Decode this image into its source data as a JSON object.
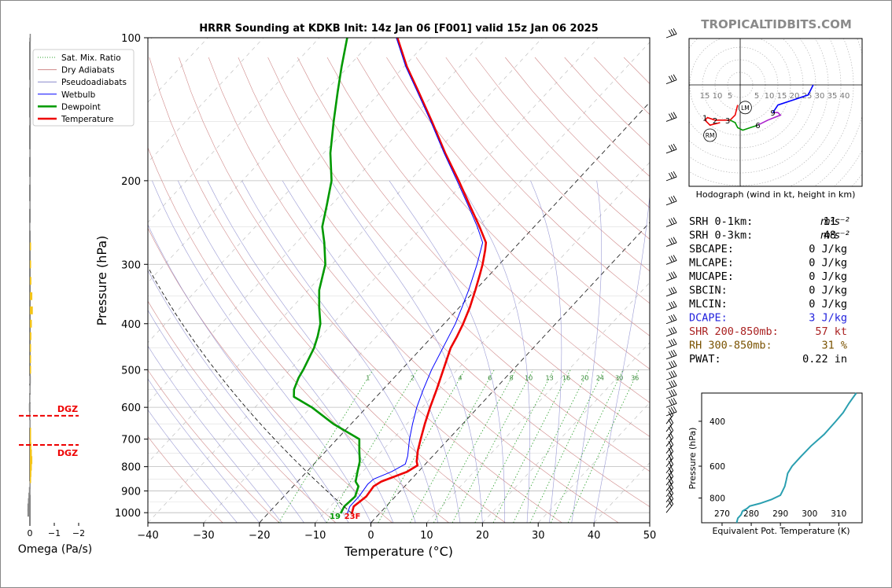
{
  "header": {
    "title": "HRRR Sounding at KDKB Init: 14z Jan 06 [F001] valid 15z Jan 06 2025",
    "brand": "TROPICALTIDBITS.COM"
  },
  "chart_data": [
    {
      "type": "line",
      "name": "skewt",
      "xlabel": "Temperature (°C)",
      "ylabel": "Pressure (hPa)",
      "xlim": [
        -40,
        50
      ],
      "ylim": [
        1050,
        100
      ],
      "log_y": true,
      "grid": true,
      "x_ticks": [
        "−40",
        "−30",
        "−20",
        "−10",
        "0",
        "10",
        "20",
        "30",
        "40",
        "50"
      ],
      "x_tick_values": [
        -40,
        -30,
        -20,
        -10,
        0,
        10,
        20,
        30,
        40,
        50
      ],
      "y_ticks": [
        "100",
        "200",
        "300",
        "400",
        "500",
        "600",
        "700",
        "800",
        "900",
        "1000"
      ],
      "y_tick_values": [
        100,
        200,
        300,
        400,
        500,
        600,
        700,
        800,
        900,
        1000
      ],
      "legend": {
        "placement": "top-left",
        "entries": [
          {
            "label": "Sat. Mix. Ratio",
            "color": "#2ca02c",
            "style": "dotted"
          },
          {
            "label": "Dry Adiabats",
            "color": "#d08a8a",
            "style": "solid"
          },
          {
            "label": "Pseudoadiabats",
            "color": "#8888cc",
            "style": "solid"
          },
          {
            "label": "Wetbulb",
            "color": "#0000ff",
            "style": "solid"
          },
          {
            "label": "Dewpoint",
            "color": "#009900",
            "style": "solid"
          },
          {
            "label": "Temperature",
            "color": "#ee0000",
            "style": "solid"
          }
        ]
      },
      "mixing_ratio_labels": [
        "1",
        "2",
        "4",
        "6",
        "8",
        "10",
        "13",
        "16",
        "20",
        "24",
        "30",
        "36"
      ],
      "mixing_ratio_values": [
        1,
        2,
        4,
        6,
        8,
        10,
        13,
        16,
        20,
        24,
        30,
        36
      ],
      "surface_temp_label": "23F",
      "surface_dewp_label": "19",
      "series": [
        {
          "name": "Temperature",
          "color": "#ee0000",
          "points": [
            [
              1003,
              -5.0
            ],
            [
              970,
              -5.8
            ],
            [
              925,
              -5.2
            ],
            [
              880,
              -5.6
            ],
            [
              860,
              -5.0
            ],
            [
              820,
              -2.0
            ],
            [
              795,
              -1.2
            ],
            [
              780,
              -2.0
            ],
            [
              740,
              -3.6
            ],
            [
              700,
              -5.0
            ],
            [
              650,
              -6.8
            ],
            [
              600,
              -8.6
            ],
            [
              550,
              -10.4
            ],
            [
              500,
              -12.5
            ],
            [
              450,
              -14.8
            ],
            [
              425,
              -15.6
            ],
            [
              400,
              -16.6
            ],
            [
              370,
              -18.1
            ],
            [
              340,
              -20.0
            ],
            [
              315,
              -21.8
            ],
            [
              300,
              -23.0
            ],
            [
              280,
              -24.9
            ],
            [
              270,
              -26.0
            ],
            [
              250,
              -29.8
            ],
            [
              225,
              -35.2
            ],
            [
              200,
              -41.2
            ],
            [
              175,
              -48.2
            ],
            [
              150,
              -55.9
            ],
            [
              130,
              -63.2
            ],
            [
              115,
              -69.5
            ],
            [
              100,
              -76.0
            ]
          ]
        },
        {
          "name": "Dewpoint",
          "color": "#009900",
          "points": [
            [
              1003,
              -7.0
            ],
            [
              970,
              -7.5
            ],
            [
              925,
              -7.2
            ],
            [
              880,
              -8.3
            ],
            [
              860,
              -9.6
            ],
            [
              820,
              -10.9
            ],
            [
              780,
              -12.2
            ],
            [
              740,
              -14.1
            ],
            [
              700,
              -16.0
            ],
            [
              650,
              -23.2
            ],
            [
              600,
              -29.8
            ],
            [
              570,
              -34.8
            ],
            [
              550,
              -36.0
            ],
            [
              520,
              -37.1
            ],
            [
              500,
              -37.6
            ],
            [
              450,
              -39.3
            ],
            [
              425,
              -40.6
            ],
            [
              400,
              -42.2
            ],
            [
              370,
              -45.1
            ],
            [
              340,
              -48.0
            ],
            [
              300,
              -51.2
            ],
            [
              270,
              -55.0
            ],
            [
              250,
              -58.0
            ],
            [
              225,
              -60.8
            ],
            [
              200,
              -64.0
            ],
            [
              175,
              -68.8
            ],
            [
              150,
              -73.5
            ],
            [
              130,
              -77.7
            ],
            [
              115,
              -81.2
            ],
            [
              100,
              -85.0
            ]
          ]
        },
        {
          "name": "Wetbulb",
          "color": "#0000ff",
          "points": [
            [
              1003,
              -5.8
            ],
            [
              970,
              -6.5
            ],
            [
              925,
              -6.5
            ],
            [
              870,
              -7.0
            ],
            [
              850,
              -6.8
            ],
            [
              820,
              -4.8
            ],
            [
              790,
              -3.6
            ],
            [
              760,
              -4.5
            ],
            [
              700,
              -7.0
            ],
            [
              650,
              -9.0
            ],
            [
              600,
              -11.0
            ],
            [
              550,
              -12.8
            ],
            [
              500,
              -14.6
            ],
            [
              450,
              -16.2
            ],
            [
              400,
              -18.0
            ],
            [
              370,
              -19.5
            ],
            [
              340,
              -21.2
            ],
            [
              300,
              -24.0
            ],
            [
              270,
              -26.6
            ],
            [
              250,
              -30.2
            ],
            [
              225,
              -35.5
            ],
            [
              200,
              -41.5
            ],
            [
              175,
              -48.4
            ],
            [
              150,
              -56.1
            ],
            [
              130,
              -63.4
            ],
            [
              115,
              -69.7
            ],
            [
              100,
              -76.2
            ]
          ]
        }
      ]
    },
    {
      "type": "bar",
      "name": "omega",
      "xlabel": "Omega (Pa/s)",
      "x_ticks": [
        "0",
        "−1",
        "−2"
      ],
      "x_tick_values": [
        0,
        -1,
        -2
      ],
      "dgz_label": "DGZ",
      "dgz_pressures": [
        625,
        720
      ],
      "pressure": [
        1000,
        975,
        950,
        925,
        900,
        875,
        850,
        825,
        800,
        775,
        750,
        725,
        700,
        675,
        650,
        625,
        600,
        575,
        550,
        525,
        500,
        475,
        450,
        425,
        400,
        375,
        350,
        325,
        300,
        275,
        250,
        225,
        200,
        175,
        150,
        125,
        100
      ],
      "values": [
        0.1,
        0.1,
        0.08,
        0.06,
        0.04,
        0.02,
        -0.02,
        -0.06,
        -0.08,
        -0.1,
        -0.08,
        -0.06,
        -0.04,
        -0.02,
        0.02,
        0.03,
        0.04,
        0.03,
        0.02,
        0.01,
        -0.01,
        -0.02,
        -0.04,
        -0.06,
        -0.08,
        -0.12,
        -0.1,
        -0.06,
        -0.04,
        -0.02,
        0.03,
        0.02,
        0.02,
        0.02,
        0.01,
        0.01,
        0.01
      ]
    },
    {
      "type": "line",
      "name": "hodograph",
      "caption": "Hodograph (wind in kt, height in km)",
      "ring_labels_left": [
        "15",
        "10",
        "5"
      ],
      "ring_labels_right": [
        "5",
        "10",
        "15",
        "20",
        "25",
        "30",
        "35",
        "40"
      ],
      "markers": [
        {
          "label": "LM",
          "u": 2,
          "v": -9
        },
        {
          "label": "RM",
          "u": -12,
          "v": -20
        }
      ],
      "height_labels": [
        {
          "label": "1",
          "u": -14,
          "v": -13
        },
        {
          "label": "2",
          "u": -10,
          "v": -14
        },
        {
          "label": "3",
          "u": -5,
          "v": -14
        },
        {
          "label": "6",
          "u": 7,
          "v": -16
        },
        {
          "label": "9",
          "u": 13,
          "v": -11
        }
      ],
      "segments": [
        {
          "color": "#ee0000",
          "points": [
            [
              -1,
              -8
            ],
            [
              -2,
              -12
            ],
            [
              -4,
              -14
            ],
            [
              -7,
              -14
            ],
            [
              -10,
              -14
            ],
            [
              -13,
              -13
            ],
            [
              -14,
              -14
            ],
            [
              -12,
              -16
            ],
            [
              -8,
              -15
            ]
          ]
        },
        {
          "color": "#009900",
          "points": [
            [
              -4,
              -14
            ],
            [
              -2,
              -15
            ],
            [
              -1,
              -17
            ],
            [
              1,
              -18
            ],
            [
              4,
              -17
            ],
            [
              7,
              -16
            ]
          ]
        },
        {
          "color": "#aa22cc",
          "points": [
            [
              7,
              -16
            ],
            [
              11,
              -14
            ],
            [
              16,
              -12
            ],
            [
              15,
              -11
            ],
            [
              13,
              -11
            ]
          ]
        },
        {
          "color": "#0000ff",
          "points": [
            [
              13,
              -11
            ],
            [
              15,
              -8
            ],
            [
              21,
              -6
            ],
            [
              27,
              -4
            ],
            [
              29,
              0
            ]
          ]
        }
      ]
    },
    {
      "type": "line",
      "name": "theta_e",
      "xlabel": "Equivalent Pot. Temperature (K)",
      "ylabel": "Pressure (hPa)",
      "x_ticks": [
        "270",
        "280",
        "290",
        "300",
        "310"
      ],
      "x_tick_values": [
        270,
        280,
        290,
        300,
        310
      ],
      "y_ticks": [
        "400",
        "600",
        "800"
      ],
      "y_tick_values": [
        400,
        600,
        800
      ],
      "xlim": [
        263,
        318
      ],
      "ylim": [
        1000,
        310
      ],
      "color": "#2a9fb0",
      "points": [
        [
          1000,
          275.0
        ],
        [
          960,
          275.4
        ],
        [
          930,
          276.5
        ],
        [
          900,
          277.0
        ],
        [
          880,
          278.5
        ],
        [
          860,
          279.5
        ],
        [
          840,
          283.0
        ],
        [
          810,
          287.0
        ],
        [
          780,
          290.0
        ],
        [
          760,
          290.5
        ],
        [
          720,
          291.5
        ],
        [
          680,
          292.0
        ],
        [
          640,
          292.5
        ],
        [
          600,
          294.0
        ],
        [
          550,
          297.0
        ],
        [
          500,
          300.5
        ],
        [
          450,
          305.0
        ],
        [
          400,
          309.0
        ],
        [
          370,
          311.5
        ],
        [
          340,
          313.5
        ],
        [
          310,
          316.0
        ]
      ]
    }
  ],
  "indices": [
    {
      "label": "SRH 0-1km:",
      "value": "11",
      "unit": "m²s⁻²",
      "color": "#000000"
    },
    {
      "label": "SRH 0-3km:",
      "value": "48",
      "unit": "m²s⁻²",
      "color": "#000000"
    },
    {
      "label": "SBCAPE:",
      "value": "0 J/kg",
      "unit": "",
      "color": "#000000"
    },
    {
      "label": "MLCAPE:",
      "value": "0 J/kg",
      "unit": "",
      "color": "#000000"
    },
    {
      "label": "MUCAPE:",
      "value": "0 J/kg",
      "unit": "",
      "color": "#000000"
    },
    {
      "label": "SBCIN:",
      "value": "0 J/kg",
      "unit": "",
      "color": "#000000"
    },
    {
      "label": "MLCIN:",
      "value": "0 J/kg",
      "unit": "",
      "color": "#000000"
    },
    {
      "label": "DCAPE:",
      "value": "3 J/kg",
      "unit": "",
      "color": "#2222dd"
    },
    {
      "label": "SHR 200-850mb:",
      "value": "57 kt",
      "unit": "",
      "color": "#aa2222"
    },
    {
      "label": "RH 300-850mb:",
      "value": "31 %",
      "unit": "",
      "color": "#7a5200"
    },
    {
      "label": "PWAT:",
      "value": "0.22 in",
      "unit": "",
      "color": "#000000"
    }
  ]
}
